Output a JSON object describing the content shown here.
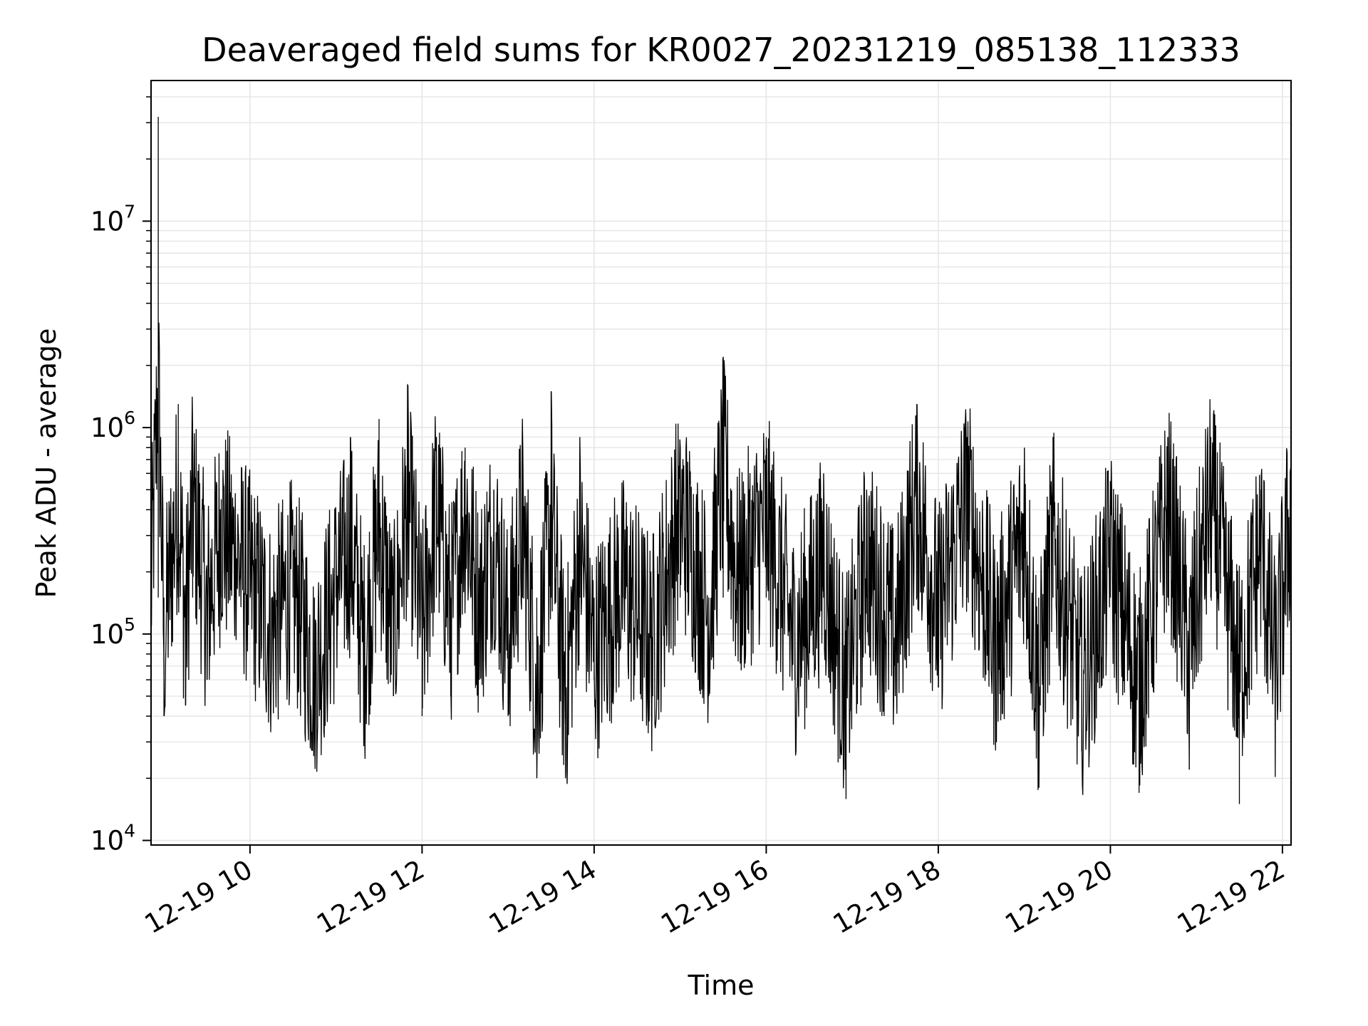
{
  "chart_data": {
    "type": "line",
    "title": "Deaveraged field sums for KR0027_20231219_085138_112333",
    "xlabel": "Time",
    "ylabel": "Peak ADU - average",
    "x_tick_labels": [
      "12-19 10",
      "12-19 12",
      "12-19 14",
      "12-19 16",
      "12-19 18",
      "12-19 20",
      "12-19 22"
    ],
    "x_ticks": [
      "2023-12-19 10:00",
      "2023-12-19 12:00",
      "2023-12-19 14:00",
      "2023-12-19 16:00",
      "2023-12-19 18:00",
      "2023-12-19 20:00",
      "2023-12-19 22:00"
    ],
    "y_tick_labels": [
      {
        "base": "10",
        "exp": "4"
      },
      {
        "base": "10",
        "exp": "5"
      },
      {
        "base": "10",
        "exp": "6"
      },
      {
        "base": "10",
        "exp": "7"
      }
    ],
    "y_ticks": [
      10000,
      100000,
      1000000,
      10000000
    ],
    "xlim": [
      "2023-12-19 08:51",
      "2023-12-19 22:06"
    ],
    "ylim": [
      9500,
      48000000
    ],
    "yscale": "log",
    "grid": true,
    "grid_color": "#e6e6e6",
    "line_color": "#000000",
    "series": [
      {
        "x": [
          "2023-12-19 08:51",
          "2023-12-19 08:56",
          "2023-12-19 09:00",
          "2023-12-19 09:05",
          "2023-12-19 09:10",
          "2023-12-19 09:15",
          "2023-12-19 09:20",
          "2023-12-19 09:25",
          "2023-12-19 09:30",
          "2023-12-19 09:40",
          "2023-12-19 09:50",
          "2023-12-19 10:00",
          "2023-12-19 10:15",
          "2023-12-19 10:30",
          "2023-12-19 10:45",
          "2023-12-19 11:00",
          "2023-12-19 11:10",
          "2023-12-19 11:20",
          "2023-12-19 11:30",
          "2023-12-19 11:40",
          "2023-12-19 11:50",
          "2023-12-19 12:00",
          "2023-12-19 12:10",
          "2023-12-19 12:20",
          "2023-12-19 12:30",
          "2023-12-19 12:40",
          "2023-12-19 12:50",
          "2023-12-19 13:00",
          "2023-12-19 13:10",
          "2023-12-19 13:20",
          "2023-12-19 13:30",
          "2023-12-19 13:40",
          "2023-12-19 13:50",
          "2023-12-19 14:00",
          "2023-12-19 14:20",
          "2023-12-19 14:40",
          "2023-12-19 15:00",
          "2023-12-19 15:20",
          "2023-12-19 15:30",
          "2023-12-19 15:40",
          "2023-12-19 16:00",
          "2023-12-19 16:20",
          "2023-12-19 16:40",
          "2023-12-19 16:55",
          "2023-12-19 17:10",
          "2023-12-19 17:30",
          "2023-12-19 17:45",
          "2023-12-19 18:00",
          "2023-12-19 18:20",
          "2023-12-19 18:40",
          "2023-12-19 19:00",
          "2023-12-19 19:10",
          "2023-12-19 19:20",
          "2023-12-19 19:40",
          "2023-12-19 20:00",
          "2023-12-19 20:20",
          "2023-12-19 20:40",
          "2023-12-19 20:55",
          "2023-12-19 21:10",
          "2023-12-19 21:30",
          "2023-12-19 21:45",
          "2023-12-19 21:55",
          "2023-12-19 22:06"
        ],
        "y": [
          150000,
          32000000,
          40000,
          250000,
          1300000,
          45000,
          900000,
          250000,
          60000,
          450000,
          250000,
          150000,
          60000,
          250000,
          38000,
          300000,
          900000,
          60000,
          1100000,
          50000,
          1600000,
          40000,
          900000,
          50000,
          800000,
          60000,
          500000,
          40000,
          900000,
          20000,
          1500000,
          20000,
          900000,
          60000,
          300000,
          40000,
          800000,
          50000,
          2200000,
          130000,
          900000,
          60000,
          600000,
          22000,
          500000,
          50000,
          1300000,
          55000,
          900000,
          30000,
          800000,
          18000,
          900000,
          27000,
          550000,
          17000,
          900000,
          22000,
          900000,
          15000,
          500000,
          25000,
          1900000
        ]
      }
    ]
  }
}
